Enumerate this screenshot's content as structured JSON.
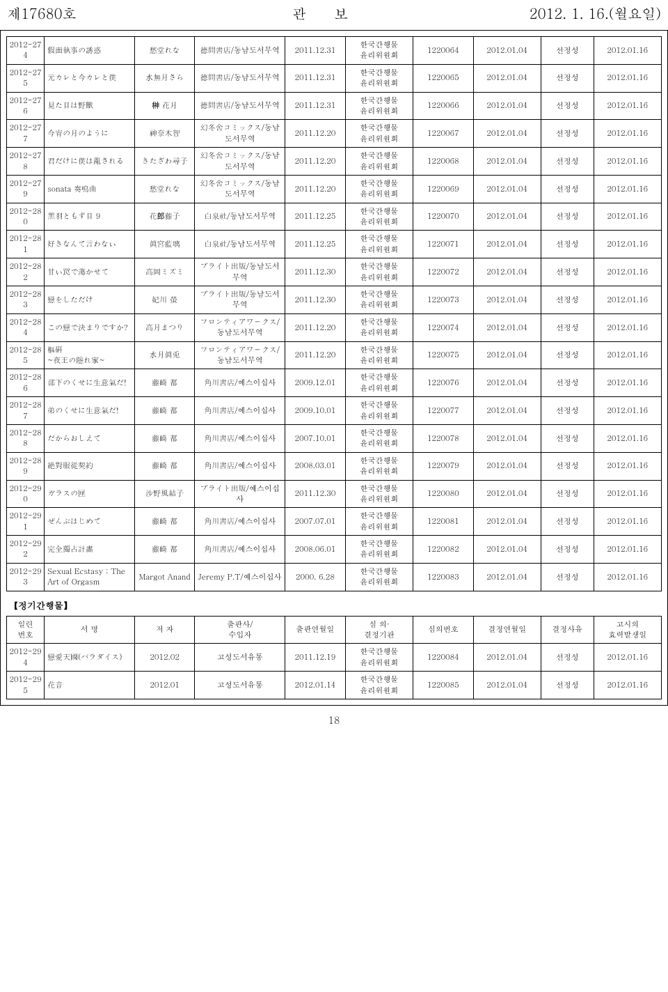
{
  "header": {
    "left": "제17680호",
    "center": "관보",
    "right": "2012. 1. 16.(월요일)"
  },
  "common": {
    "org": "한국간행물\n윤리위원회",
    "reason": "선정성",
    "decDate": "2012.01.04",
    "effDate": "2012.01.16"
  },
  "rows": [
    {
      "no": "2012-274",
      "title": "假面執事の誘惑",
      "author": "愁堂れな",
      "pub": "德間書店/동남도서무역",
      "pubDate": "2011.12.31",
      "decNo": "1220064"
    },
    {
      "no": "2012-275",
      "title": "元カレと今カレと僕",
      "author": "水無月さら",
      "pub": "德間書店/동남도서무역",
      "pubDate": "2011.12.31",
      "decNo": "1220065"
    },
    {
      "no": "2012-276",
      "title": "見た目は野獸",
      "author": "榊 花月",
      "pub": "德間書店/동남도서무역",
      "pubDate": "2011.12.31",
      "decNo": "1220066"
    },
    {
      "no": "2012-277",
      "title": "今宵の月のように",
      "author": "神奈木智",
      "pub": "幻冬舍コミックス/동남도서무역",
      "pubDate": "2011.12.20",
      "decNo": "1220067"
    },
    {
      "no": "2012-278",
      "title": "君だけに僕は亂される",
      "author": "きたざわ尋子",
      "pub": "幻冬舍コミックス/동남도서무역",
      "pubDate": "2011.12.20",
      "decNo": "1220068"
    },
    {
      "no": "2012-279",
      "title": "sonata 奏鳴曲",
      "author": "愁堂れな",
      "pub": "幻冬舍コミックス/동남도서무역",
      "pubDate": "2011.12.20",
      "decNo": "1220069"
    },
    {
      "no": "2012-280",
      "title": "黑羽ともず目 9",
      "author": "花郎藤子",
      "pub": "白泉社/동남도서무역",
      "pubDate": "2011.12.25",
      "decNo": "1220070"
    },
    {
      "no": "2012-281",
      "title": "好きなんて言わない",
      "author": "眞宮藍璃",
      "pub": "白泉社/동남도서무역",
      "pubDate": "2011.12.25",
      "decNo": "1220071"
    },
    {
      "no": "2012-282",
      "title": "甘い罠で蕩かせて",
      "author": "高岡ミズミ",
      "pub": "ブライト出版/동남도서무역",
      "pubDate": "2011.12.30",
      "decNo": "1220072"
    },
    {
      "no": "2012-283",
      "title": "戀をしただけ",
      "author": "妃川 螢",
      "pub": "ブライト出版/동남도서무역",
      "pubDate": "2011.12.30",
      "decNo": "1220073"
    },
    {
      "no": "2012-284",
      "title": "この戀で決まりですか?",
      "author": "高月まつり",
      "pub": "フロンティアワ－クス/동남도서무역",
      "pubDate": "2011.12.20",
      "decNo": "1220074"
    },
    {
      "no": "2012-285",
      "title": "樞硏\n~夜王の隱れ家~",
      "author": "水月眞兎",
      "pub": "フロンティアワ－クス/동남도서무역",
      "pubDate": "2011.12.20",
      "decNo": "1220075"
    },
    {
      "no": "2012-286",
      "title": "部下のくせに生意氣だ!",
      "author": "藤崎 都",
      "pub": "角川書店/예스이십사",
      "pubDate": "2009.12.01",
      "decNo": "1220076"
    },
    {
      "no": "2012-287",
      "title": "弟のくせに生意氣だ!",
      "author": "藤崎 都",
      "pub": "角川書店/예스이십사",
      "pubDate": "2009.10.01",
      "decNo": "1220077"
    },
    {
      "no": "2012-288",
      "title": "だからおしえて",
      "author": "藤崎 都",
      "pub": "角川書店/예스이십사",
      "pubDate": "2007.10.01",
      "decNo": "1220078"
    },
    {
      "no": "2012-289",
      "title": "絶對服從契約",
      "author": "藤崎 都",
      "pub": "角川書店/예스이십사",
      "pubDate": "2008.03.01",
      "decNo": "1220079"
    },
    {
      "no": "2012-290",
      "title": "ガラスの匣",
      "author": "沙野風結子",
      "pub": "ブライト出版/예스이십사",
      "pubDate": "2011.12.30",
      "decNo": "1220080"
    },
    {
      "no": "2012-291",
      "title": "ぜんぶはじめて",
      "author": "藤崎 都",
      "pub": "角川書店/예스이십사",
      "pubDate": "2007.07.01",
      "decNo": "1220081"
    },
    {
      "no": "2012-292",
      "title": "完全獨占計畵",
      "author": "藤崎 都",
      "pub": "角川書店/예스이십사",
      "pubDate": "2008.06.01",
      "decNo": "1220082"
    },
    {
      "no": "2012-293",
      "title": "Sexual Ecstasy : The Art of Orgasm",
      "author": "Margot Anand",
      "pub": "Jeremy P.T/예스이십사",
      "pubDate": "2000. 6.28",
      "decNo": "1220083"
    }
  ],
  "section2": "【정기간행물】",
  "header2": {
    "c0": "일련\n번호",
    "c1": "서 명",
    "c2": "저 자",
    "c3": "출판사/\n수입자",
    "c4": "출판연월일",
    "c5": "심 의·\n결정기관",
    "c6": "심의번호",
    "c7": "결정연월일",
    "c8": "결정사유",
    "c9": "고시의\n효력발생일"
  },
  "rows2": [
    {
      "no": "2012-294",
      "title": "戀愛天國(パラダイス)",
      "author": "2012.02",
      "pub": "고성도서유통",
      "pubDate": "2011.12.19",
      "decNo": "1220084"
    },
    {
      "no": "2012-295",
      "title": "花音",
      "author": "2012.01",
      "pub": "고성도서유통",
      "pubDate": "2012.01.14",
      "decNo": "1220085"
    }
  ],
  "pagenum": "18"
}
